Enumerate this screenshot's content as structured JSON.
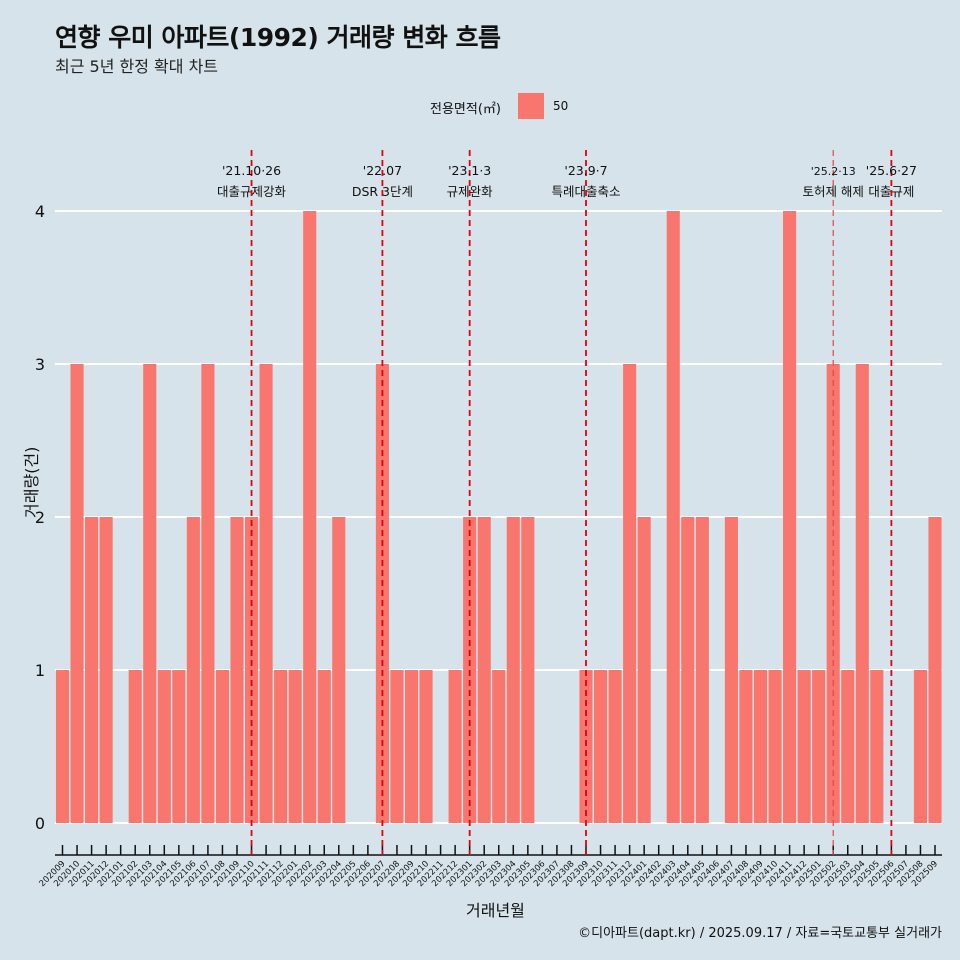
{
  "header": {
    "title": "연향 우미 아파트(1992) 거래량 변화 흐름",
    "subtitle": "최근 5년 한정 확대 차트"
  },
  "legend": {
    "title": "전용면적(㎡)",
    "label": "50",
    "color": "#f8766d"
  },
  "caption": "©디아파트(dapt.kr) / 2025.09.17 / 자료=국토교통부 실거래가",
  "chart_data": {
    "type": "bar",
    "title": "연향 우미 아파트(1992) 거래량 변화 흐름",
    "subtitle": "최근 5년 한정 확대 차트",
    "xlabel": "거래년월",
    "ylabel": "거래량(건)",
    "ylim": [
      0,
      4
    ],
    "yticks": [
      "0",
      "1",
      "2",
      "3",
      "4"
    ],
    "grid": true,
    "legend_position": "top",
    "bar_color": "#f8766d",
    "categories": [
      "202009",
      "202010",
      "202011",
      "202012",
      "202101",
      "202102",
      "202103",
      "202104",
      "202105",
      "202106",
      "202107",
      "202108",
      "202109",
      "202110",
      "202111",
      "202112",
      "202201",
      "202202",
      "202203",
      "202204",
      "202205",
      "202206",
      "202207",
      "202208",
      "202209",
      "202210",
      "202211",
      "202212",
      "202301",
      "202302",
      "202303",
      "202304",
      "202305",
      "202306",
      "202307",
      "202308",
      "202309",
      "202310",
      "202311",
      "202312",
      "202401",
      "202402",
      "202403",
      "202404",
      "202405",
      "202406",
      "202407",
      "202408",
      "202409",
      "202410",
      "202411",
      "202412",
      "202501",
      "202502",
      "202503",
      "202504",
      "202505",
      "202506",
      "202507",
      "202508",
      "202509"
    ],
    "series": [
      {
        "name": "50",
        "values": [
          1,
          3,
          2,
          2,
          0,
          1,
          3,
          1,
          1,
          2,
          3,
          1,
          2,
          2,
          3,
          1,
          1,
          4,
          1,
          2,
          0,
          0,
          3,
          1,
          1,
          1,
          0,
          1,
          2,
          2,
          1,
          2,
          2,
          0,
          0,
          0,
          1,
          1,
          1,
          3,
          2,
          0,
          4,
          2,
          2,
          0,
          2,
          1,
          1,
          1,
          4,
          1,
          1,
          3,
          1,
          3,
          1,
          0,
          0,
          1,
          2
        ]
      }
    ],
    "annotations": [
      {
        "category": "202110",
        "date": "'21.10·26",
        "label": "대출규제강화",
        "style": "dashed"
      },
      {
        "category": "202207",
        "date": "'22.07",
        "label": "DSR 3단계",
        "style": "dashed"
      },
      {
        "category": "202301",
        "date": "'23.1·3",
        "label": "규제완화",
        "style": "dashed"
      },
      {
        "category": "202309",
        "date": "'23.9·7",
        "label": "특례대출축소",
        "style": "dashed"
      },
      {
        "category": "202502",
        "date": "'25.2·13",
        "label": "토허제 해제",
        "style": "dashed-light"
      },
      {
        "category": "202506",
        "date": "'25.6·27",
        "label": "대출규제",
        "style": "dashed"
      }
    ]
  }
}
